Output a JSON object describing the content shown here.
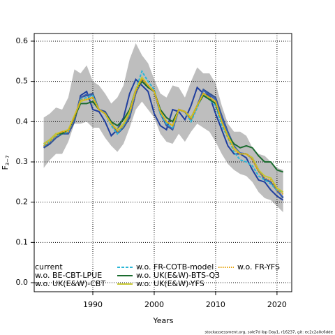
{
  "chart_data": {
    "type": "line",
    "xlabel": "Years",
    "ylabel": {
      "main": "F",
      "sub": "3−7"
    },
    "footnote": "stockassessment.org, sole7d ibp Day1, r16237, git: ec2c2a0c6dde",
    "x": [
      1982,
      1983,
      1984,
      1985,
      1986,
      1987,
      1988,
      1989,
      1990,
      1991,
      1992,
      1993,
      1994,
      1995,
      1996,
      1997,
      1998,
      1999,
      2000,
      2001,
      2002,
      2003,
      2004,
      2005,
      2006,
      2007,
      2008,
      2009,
      2010,
      2011,
      2012,
      2013,
      2014,
      2015,
      2016,
      2017,
      2018,
      2019,
      2020,
      2021
    ],
    "xlim": [
      1980.45,
      2022.4
    ],
    "xticks": [
      1990,
      2000,
      2010,
      2020
    ],
    "ylim": [
      -0.0225,
      0.619
    ],
    "yticks": [
      {
        "value": 0,
        "label": "0.0"
      },
      0.1,
      0.2,
      0.3,
      0.4,
      0.5,
      0.6
    ],
    "grid": true,
    "band": {
      "color": "#bebebe",
      "upper": [
        0.41,
        0.42,
        0.435,
        0.43,
        0.46,
        0.53,
        0.52,
        0.54,
        0.5,
        0.49,
        0.47,
        0.445,
        0.46,
        0.49,
        0.555,
        0.595,
        0.565,
        0.545,
        0.505,
        0.47,
        0.46,
        0.49,
        0.485,
        0.46,
        0.5,
        0.535,
        0.52,
        0.52,
        0.495,
        0.44,
        0.395,
        0.375,
        0.375,
        0.365,
        0.335,
        0.32,
        0.315,
        0.3,
        0.285,
        0.28
      ],
      "lower": [
        0.285,
        0.305,
        0.32,
        0.32,
        0.35,
        0.395,
        0.395,
        0.4,
        0.385,
        0.385,
        0.36,
        0.34,
        0.325,
        0.345,
        0.385,
        0.43,
        0.45,
        0.43,
        0.41,
        0.37,
        0.35,
        0.345,
        0.37,
        0.35,
        0.375,
        0.395,
        0.385,
        0.375,
        0.35,
        0.32,
        0.295,
        0.28,
        0.27,
        0.265,
        0.25,
        0.225,
        0.21,
        0.205,
        0.19,
        0.175
      ]
    },
    "series": [
      {
        "name": "current",
        "color": "#1f3e9e",
        "dash": "solid",
        "values": [
          0.335,
          0.345,
          0.36,
          0.37,
          0.37,
          0.4,
          0.465,
          0.475,
          0.43,
          0.425,
          0.4,
          0.365,
          0.38,
          0.41,
          0.47,
          0.505,
          0.49,
          0.475,
          0.42,
          0.39,
          0.38,
          0.43,
          0.425,
          0.405,
          0.44,
          0.485,
          0.47,
          0.465,
          0.42,
          0.38,
          0.34,
          0.32,
          0.32,
          0.31,
          0.28,
          0.255,
          0.25,
          0.23,
          0.215,
          0.205
        ]
      },
      {
        "name": "w.o. BE-CBT-LPUE",
        "color": "#2f4f8f",
        "dash": "solid",
        "values": [
          0.335,
          0.345,
          0.36,
          0.37,
          0.37,
          0.4,
          0.46,
          0.465,
          0.47,
          0.43,
          0.425,
          0.4,
          0.37,
          0.385,
          0.41,
          0.47,
          0.505,
          0.49,
          0.475,
          0.42,
          0.39,
          0.38,
          0.43,
          0.425,
          0.405,
          0.44,
          0.48,
          0.47,
          0.46,
          0.415,
          0.375,
          0.34,
          0.32,
          0.32,
          0.31,
          0.28,
          0.255,
          0.25,
          0.23,
          0.21
        ]
      },
      {
        "name": "w.o. UK(E&W)-CBT",
        "color": "#3a5fb0",
        "dash": "solid",
        "values": [
          0.338,
          0.348,
          0.362,
          0.372,
          0.372,
          0.405,
          0.46,
          0.468,
          0.465,
          0.43,
          0.422,
          0.395,
          0.372,
          0.388,
          0.415,
          0.472,
          0.5,
          0.488,
          0.474,
          0.422,
          0.392,
          0.382,
          0.43,
          0.424,
          0.404,
          0.44,
          0.478,
          0.466,
          0.455,
          0.41,
          0.372,
          0.338,
          0.322,
          0.32,
          0.308,
          0.278,
          0.258,
          0.25,
          0.228,
          0.212
        ]
      },
      {
        "name": "w.o. FR-COTB-model",
        "color": "#29b6d6",
        "dash": "dashed",
        "values": [
          0.34,
          0.35,
          0.365,
          0.37,
          0.375,
          0.41,
          0.455,
          0.46,
          0.465,
          0.43,
          0.42,
          0.39,
          0.37,
          0.39,
          0.42,
          0.48,
          0.525,
          0.5,
          0.48,
          0.42,
          0.395,
          0.385,
          0.43,
          0.425,
          0.4,
          0.435,
          0.47,
          0.455,
          0.44,
          0.39,
          0.36,
          0.325,
          0.305,
          0.3,
          0.29,
          0.265,
          0.255,
          0.245,
          0.23,
          0.225
        ]
      },
      {
        "name": "w.o. UK(E&W)-BTS-Q3",
        "color": "#1a6b2e",
        "dash": "solid",
        "values": [
          0.345,
          0.355,
          0.37,
          0.37,
          0.38,
          0.41,
          0.445,
          0.445,
          0.45,
          0.43,
          0.42,
          0.4,
          0.39,
          0.405,
          0.43,
          0.48,
          0.5,
          0.485,
          0.475,
          0.43,
          0.41,
          0.4,
          0.43,
          0.425,
          0.41,
          0.44,
          0.465,
          0.455,
          0.445,
          0.4,
          0.365,
          0.345,
          0.335,
          0.34,
          0.335,
          0.315,
          0.3,
          0.3,
          0.28,
          0.275
        ]
      },
      {
        "name": "w.o. UK(E&W)-YFS",
        "color": "#c8c832",
        "dash": "solid",
        "values": [
          0.345,
          0.355,
          0.37,
          0.375,
          0.38,
          0.415,
          0.45,
          0.455,
          0.46,
          0.43,
          0.42,
          0.395,
          0.38,
          0.395,
          0.425,
          0.48,
          0.51,
          0.49,
          0.475,
          0.425,
          0.4,
          0.39,
          0.43,
          0.425,
          0.41,
          0.44,
          0.47,
          0.46,
          0.45,
          0.4,
          0.365,
          0.335,
          0.32,
          0.32,
          0.31,
          0.28,
          0.265,
          0.26,
          0.235,
          0.225
        ]
      },
      {
        "name": "w.o. FR-YFS",
        "color": "#e69f00",
        "dash": "dotted",
        "values": [
          0.34,
          0.35,
          0.365,
          0.375,
          0.375,
          0.41,
          0.455,
          0.455,
          0.46,
          0.43,
          0.42,
          0.395,
          0.375,
          0.39,
          0.42,
          0.475,
          0.505,
          0.49,
          0.475,
          0.425,
          0.4,
          0.39,
          0.43,
          0.425,
          0.405,
          0.44,
          0.47,
          0.46,
          0.45,
          0.4,
          0.36,
          0.33,
          0.32,
          0.32,
          0.305,
          0.275,
          0.26,
          0.255,
          0.23,
          0.22
        ]
      }
    ]
  }
}
